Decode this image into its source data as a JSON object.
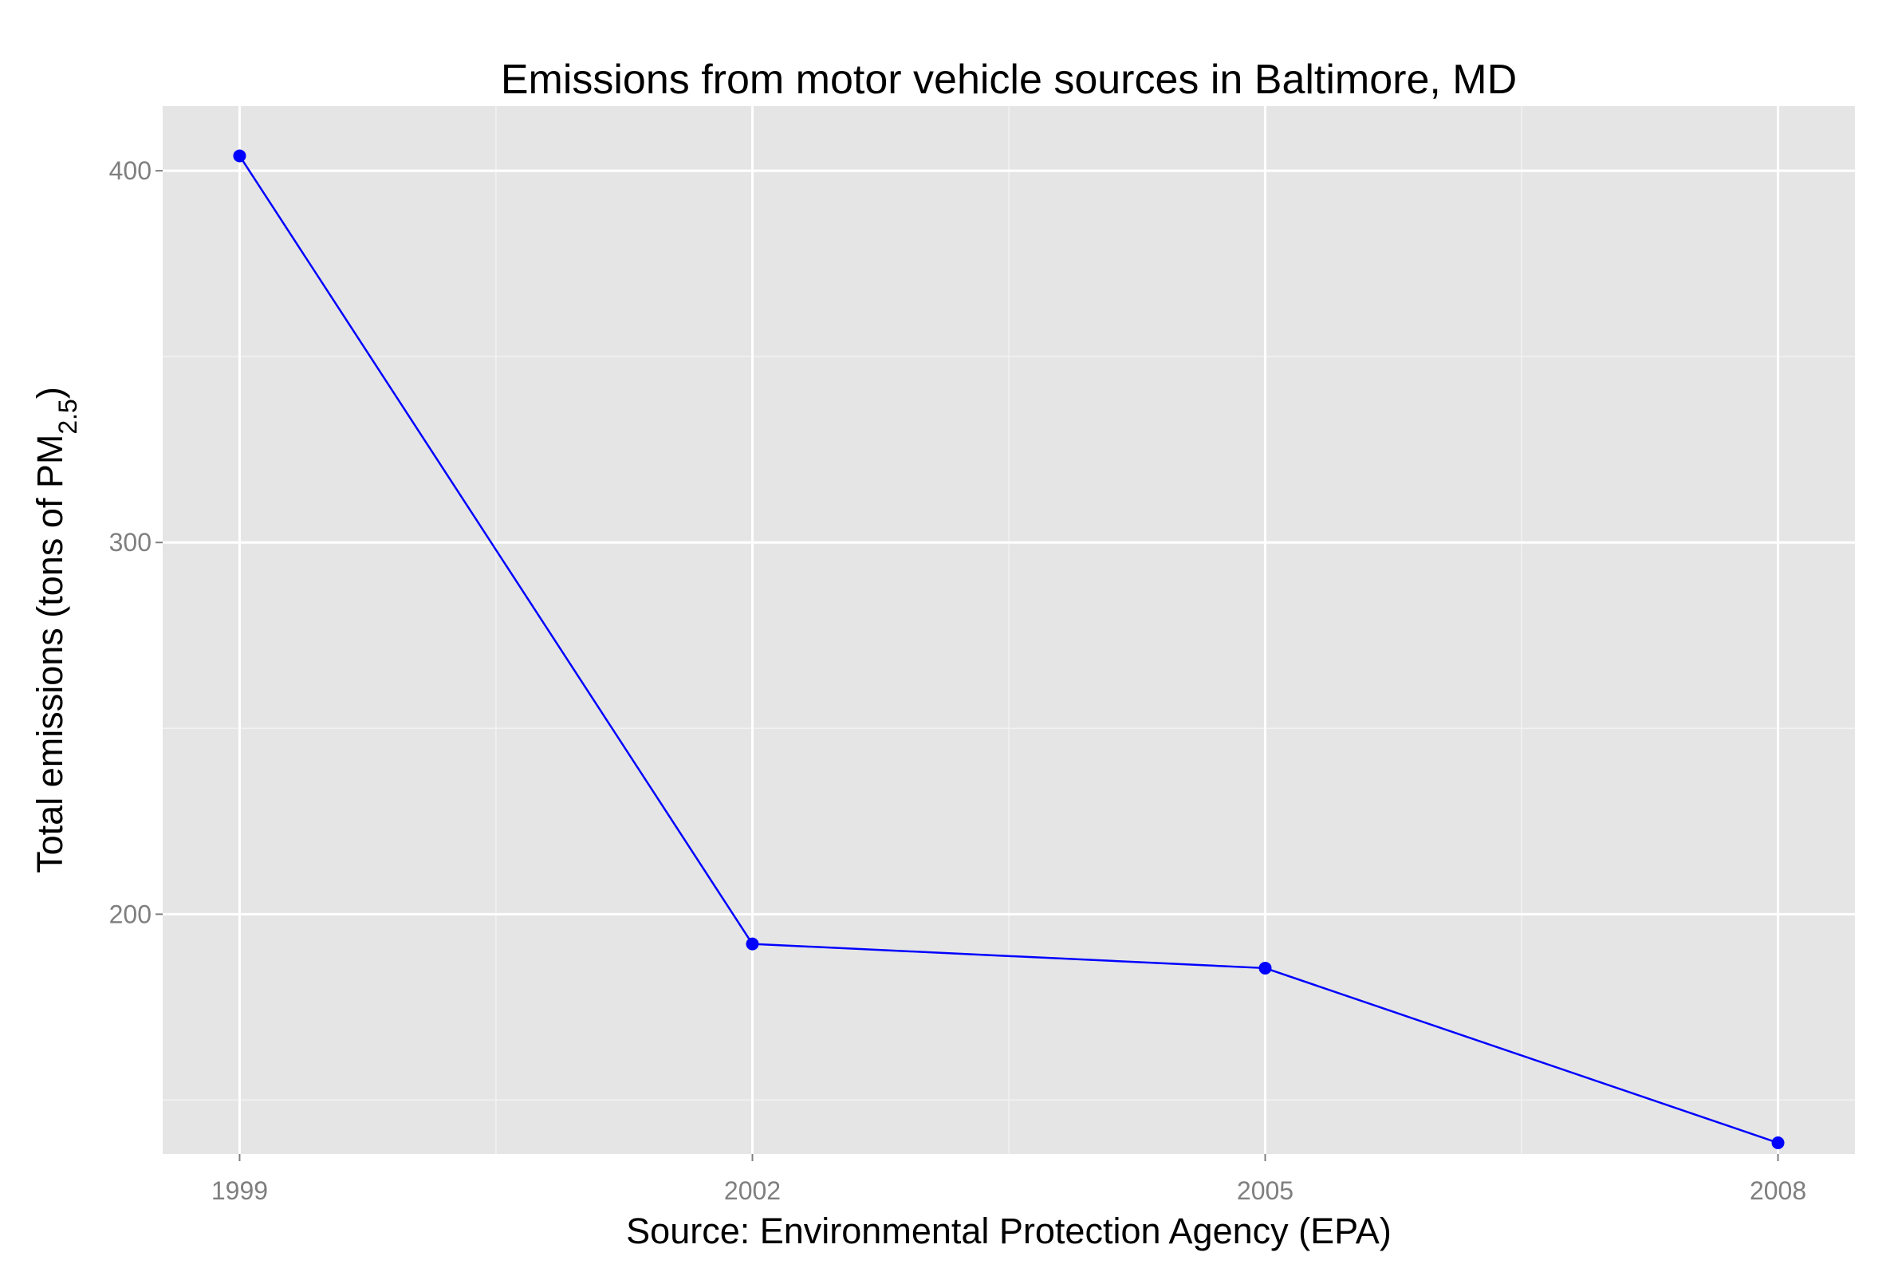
{
  "chart_data": {
    "type": "line",
    "title": "Emissions from motor vehicle sources in Baltimore, MD",
    "xlabel": "Source: Environmental Protection Agency (EPA)",
    "ylabel": {
      "prefix": "Total emissions (tons of PM",
      "subscript": "2.5",
      "suffix": ")"
    },
    "x": [
      1999,
      2002,
      2005,
      2008
    ],
    "x_tick_labels": [
      "1999",
      "2002",
      "2005",
      "2008"
    ],
    "xlim": [
      1998.55,
      2008.45
    ],
    "y_ticks": [
      200,
      300,
      400
    ],
    "y_tick_labels": [
      "200",
      "300",
      "400"
    ],
    "ylim": [
      135.5,
      417.4
    ],
    "series": [
      {
        "values": [
          404,
          192,
          185.5,
          138.5
        ]
      }
    ],
    "grid": true,
    "colors": {
      "panel_background": "#e5e5e5",
      "grid_major": "#ffffff",
      "grid_minor": "#f2f2f2",
      "line": "#0000ff",
      "point": "#0000ff",
      "tick_label": "#7f7f7f"
    }
  }
}
